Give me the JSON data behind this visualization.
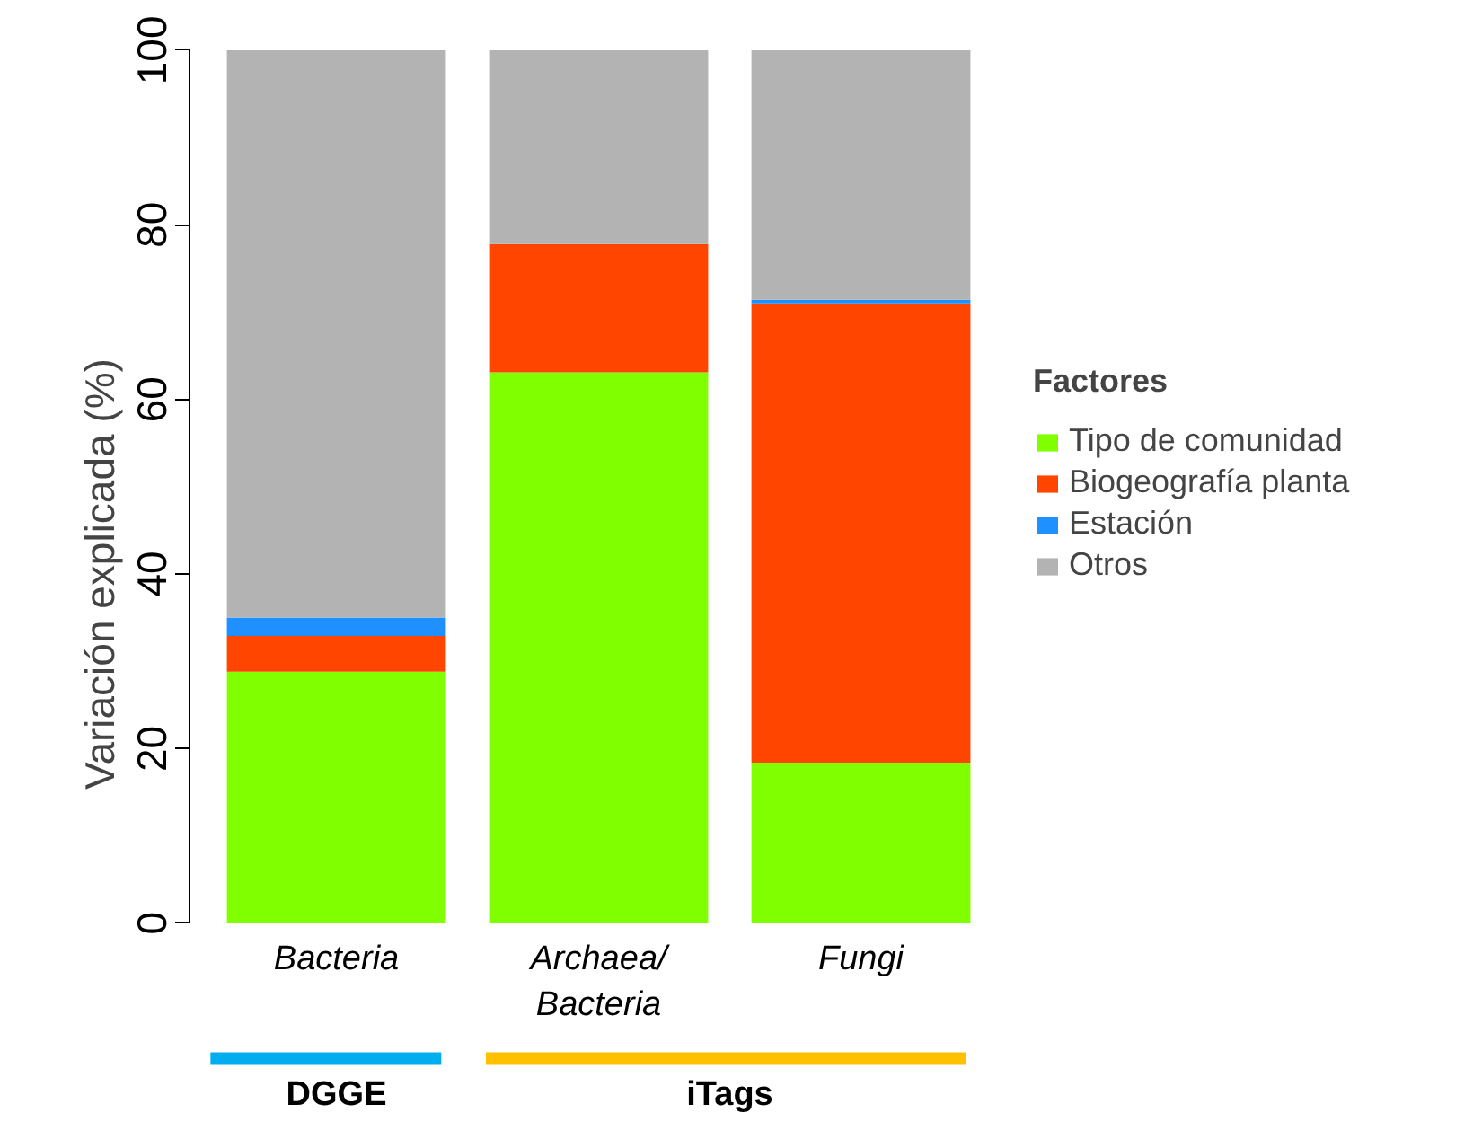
{
  "chart_data": {
    "type": "bar",
    "stacked": true,
    "ylabel": "Variación explicada (%)",
    "legend_title": "Factores",
    "categories": [
      "Bacteria",
      "Archaea/\nBacteria",
      "Fungi"
    ],
    "series": [
      {
        "name": "Tipo de comunidad",
        "color": "#7fff00",
        "values": [
          28.8,
          63.1,
          18.4
        ]
      },
      {
        "name": "Biogeografía planta",
        "color": "#ff4500",
        "values": [
          4.1,
          14.7,
          52.6
        ]
      },
      {
        "name": "Estación",
        "color": "#1e90ff",
        "values": [
          2.1,
          0,
          0.4
        ]
      },
      {
        "name": "Otros",
        "color": "#b3b3b3",
        "values": [
          65.0,
          22.2,
          28.6
        ]
      }
    ],
    "ylim": [
      0,
      100
    ],
    "yticks": [
      0,
      20,
      40,
      60,
      80,
      100
    ],
    "grid": false,
    "legend": "right",
    "annotations": [
      "DGGE",
      "iTags"
    ]
  }
}
